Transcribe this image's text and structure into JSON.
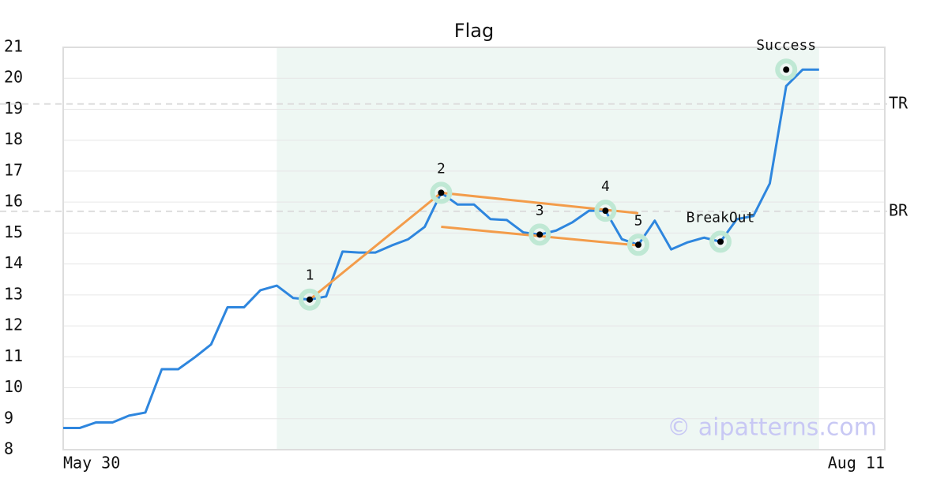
{
  "chart_data": {
    "type": "line",
    "title": "Flag",
    "x": [
      0,
      1,
      2,
      3,
      4,
      5,
      6,
      7,
      8,
      9,
      10,
      11,
      12,
      13,
      14,
      15,
      16,
      17,
      18,
      19,
      20,
      21,
      22,
      23,
      24,
      25,
      26,
      27,
      28,
      29,
      30,
      31,
      32,
      33,
      34,
      35,
      36,
      37,
      38,
      39,
      40,
      41,
      42,
      43,
      44,
      45,
      46
    ],
    "series": [
      {
        "color": "#2e86de",
        "values": [
          8.7,
          8.7,
          8.88,
          8.88,
          9.1,
          9.2,
          10.6,
          10.6,
          10.98,
          11.4,
          12.6,
          12.6,
          13.15,
          13.3,
          12.9,
          12.85,
          12.95,
          14.4,
          14.37,
          14.37,
          14.6,
          14.8,
          15.2,
          16.3,
          15.92,
          15.92,
          15.45,
          15.42,
          15.02,
          14.95,
          15.08,
          15.35,
          15.72,
          15.72,
          14.8,
          14.62,
          15.4,
          14.47,
          14.7,
          14.85,
          14.72,
          15.45,
          15.55,
          16.6,
          19.75,
          20.28,
          20.28
        ]
      }
    ],
    "xlim": [
      0,
      50
    ],
    "xticks": [
      {
        "value": 0,
        "label": "May 30"
      },
      {
        "value": 50,
        "label": "Aug 11"
      }
    ],
    "ylim": [
      8,
      21
    ],
    "yticks": [
      8,
      9,
      10,
      11,
      12,
      13,
      14,
      15,
      16,
      17,
      18,
      19,
      20,
      21
    ],
    "grid": true,
    "highlight": {
      "x": [
        13,
        46
      ],
      "color": "#eef7f3"
    },
    "hlines": [
      {
        "label": "TR",
        "value": 19.17
      },
      {
        "label": "BR",
        "value": 15.7
      }
    ],
    "trendlines": [
      {
        "x": [
          15,
          23
        ],
        "y": [
          12.85,
          16.3
        ]
      },
      {
        "x": [
          23,
          35
        ],
        "y": [
          16.3,
          15.64
        ]
      },
      {
        "x": [
          23,
          35
        ],
        "y": [
          15.2,
          14.6
        ]
      }
    ],
    "trend_color": "#f39c4a",
    "annotations": [
      {
        "label": "1",
        "x": 15,
        "y": 12.85
      },
      {
        "label": "2",
        "x": 23,
        "y": 16.3
      },
      {
        "label": "3",
        "x": 29,
        "y": 14.95
      },
      {
        "label": "4",
        "x": 33,
        "y": 15.72
      },
      {
        "label": "5",
        "x": 35,
        "y": 14.62
      },
      {
        "label": "BreakOut",
        "x": 40,
        "y": 14.72
      },
      {
        "label": "Success",
        "x": 44,
        "y": 20.28
      }
    ],
    "watermark": "© aipatterns.com"
  }
}
